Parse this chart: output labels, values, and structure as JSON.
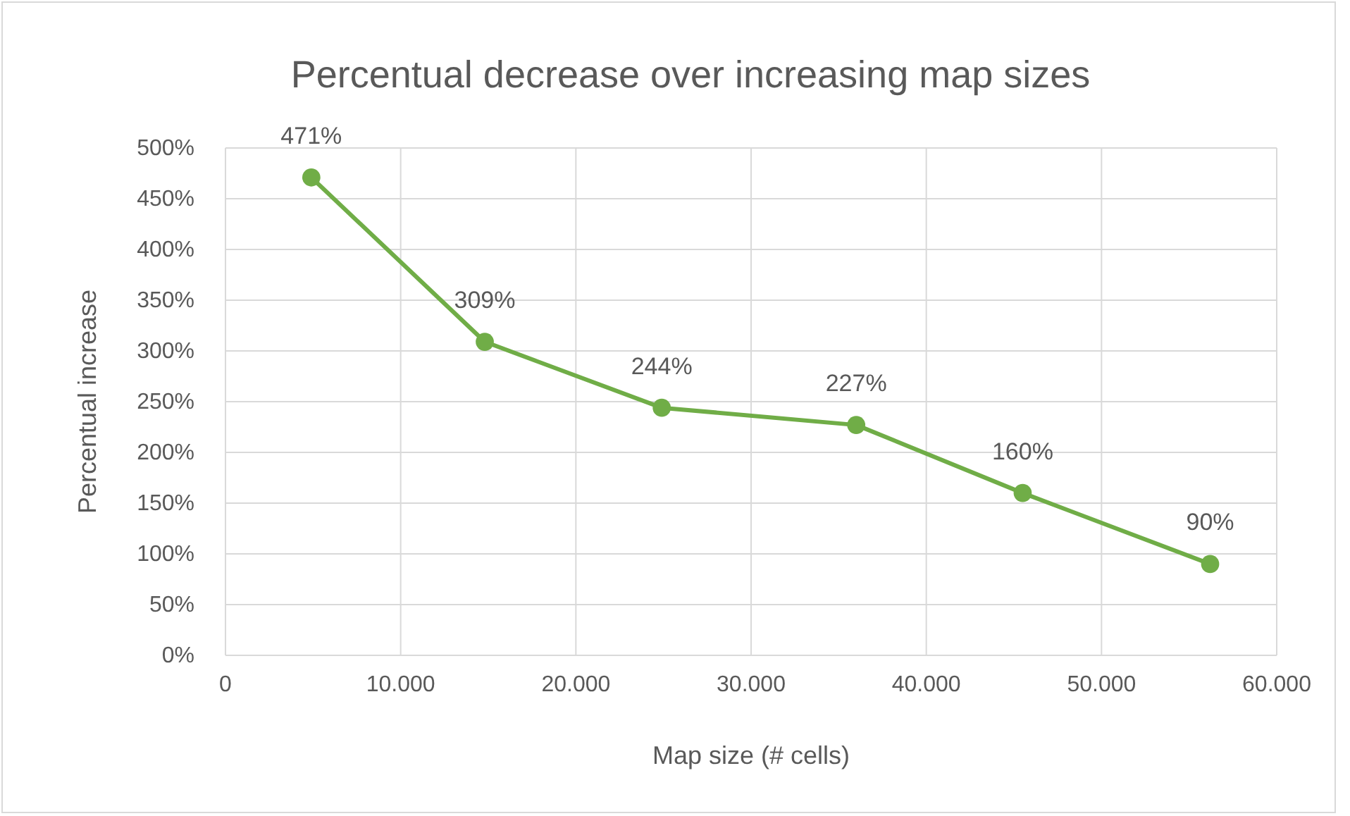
{
  "chart_data": {
    "type": "line",
    "title": "Percentual decrease over increasing map sizes",
    "xlabel": "Map size (# cells)",
    "ylabel": "Percentual increase",
    "x": [
      4900,
      14800,
      24900,
      36000,
      45500,
      56200
    ],
    "series": [
      {
        "color": "#70ad47",
        "values": [
          471,
          309,
          244,
          227,
          160,
          90
        ],
        "value_labels": [
          "471%",
          "309%",
          "244%",
          "227%",
          "160%",
          "90%"
        ]
      }
    ],
    "xlim": [
      0,
      60000
    ],
    "xticks": [
      0,
      {
        "value": 10000,
        "label": "10.000"
      },
      {
        "value": 20000,
        "label": "20.000"
      },
      {
        "value": 30000,
        "label": "30.000"
      },
      {
        "value": 40000,
        "label": "40.000"
      },
      {
        "value": 50000,
        "label": "50.000"
      },
      {
        "value": 60000,
        "label": "60.000"
      }
    ],
    "ylim": [
      0,
      500
    ],
    "yticks": [
      {
        "value": 0,
        "label": "0%"
      },
      {
        "value": 50,
        "label": "50%"
      },
      {
        "value": 100,
        "label": "100%"
      },
      {
        "value": 150,
        "label": "150%"
      },
      {
        "value": 200,
        "label": "200%"
      },
      {
        "value": 250,
        "label": "250%"
      },
      {
        "value": 300,
        "label": "300%"
      },
      {
        "value": 350,
        "label": "350%"
      },
      {
        "value": 400,
        "label": "400%"
      },
      {
        "value": 450,
        "label": "450%"
      },
      {
        "value": 500,
        "label": "500%"
      }
    ],
    "grid": true,
    "marker": "circle",
    "line_style": "solid"
  }
}
